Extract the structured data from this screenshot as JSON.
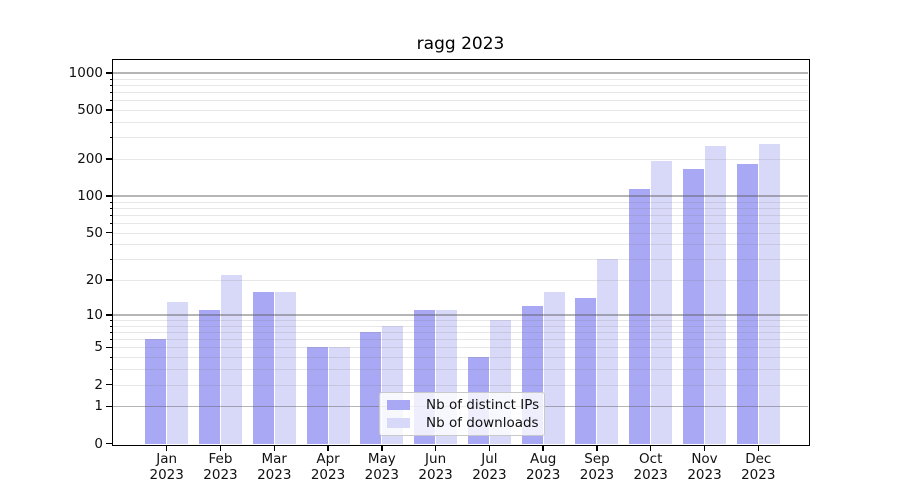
{
  "chart_data": {
    "type": "bar",
    "title": "ragg 2023",
    "categories": [
      "Jan",
      "Feb",
      "Mar",
      "Apr",
      "May",
      "Jun",
      "Jul",
      "Aug",
      "Sep",
      "Oct",
      "Nov",
      "Dec"
    ],
    "category_year": "2023",
    "series": [
      {
        "name": "Nb of distinct IPs",
        "color": "#a8a8f5",
        "values": [
          6,
          11,
          16,
          5,
          7,
          11,
          4,
          12,
          14,
          115,
          165,
          181
        ]
      },
      {
        "name": "Nb of downloads",
        "color": "#d8d8f8",
        "values": [
          13,
          22,
          16,
          5,
          8,
          11,
          9,
          16,
          30,
          193,
          255,
          266
        ]
      }
    ],
    "yscale": "log1p",
    "yticks": [
      0,
      1,
      2,
      5,
      10,
      20,
      50,
      100,
      200,
      500,
      1000
    ],
    "grid_major_at": [
      1,
      10,
      100,
      1000
    ],
    "ylim": [
      0,
      1270
    ],
    "grid": "on",
    "legend_position": "lower center",
    "axis_color": "#000000",
    "grid_major_color": "#b0b0b0",
    "grid_minor_color": "#e9e9e9"
  }
}
